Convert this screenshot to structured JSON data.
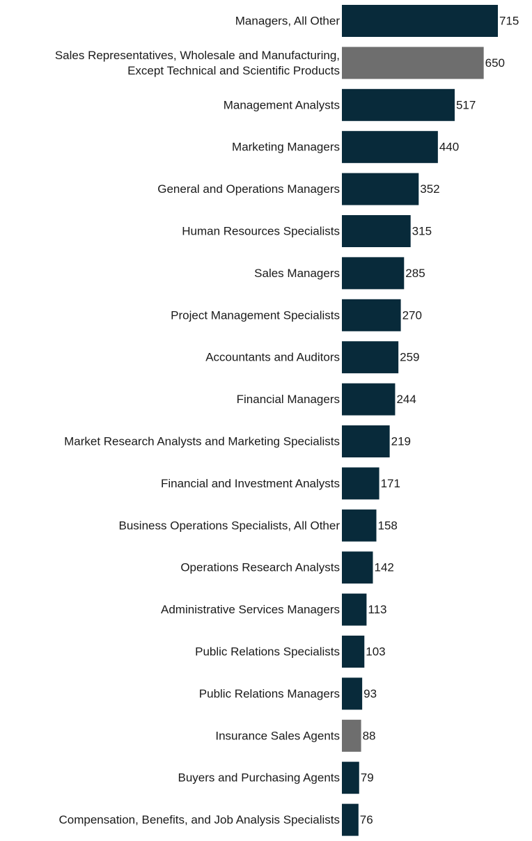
{
  "chart_data": {
    "type": "bar",
    "orientation": "horizontal",
    "title": "",
    "xlabel": "",
    "ylabel": "",
    "grid": false,
    "legend": "none",
    "xlim": [
      0,
      715
    ],
    "colors": {
      "default": "#082a3a",
      "highlight": "#6e6e6e"
    },
    "categories": [
      [
        "Managers, All Other"
      ],
      [
        "Sales Representatives, Wholesale and Manufacturing,",
        "Except Technical and Scientific Products"
      ],
      [
        "Management Analysts"
      ],
      [
        "Marketing Managers"
      ],
      [
        "General and Operations Managers"
      ],
      [
        "Human Resources Specialists"
      ],
      [
        "Sales Managers"
      ],
      [
        "Project Management Specialists"
      ],
      [
        "Accountants and Auditors"
      ],
      [
        "Financial Managers"
      ],
      [
        "Market Research Analysts and Marketing Specialists"
      ],
      [
        "Financial and Investment Analysts"
      ],
      [
        "Business Operations Specialists, All Other"
      ],
      [
        "Operations Research Analysts"
      ],
      [
        "Administrative Services Managers"
      ],
      [
        "Public Relations Specialists"
      ],
      [
        "Public Relations Managers"
      ],
      [
        "Insurance Sales Agents"
      ],
      [
        "Buyers and Purchasing Agents"
      ],
      [
        "Compensation, Benefits, and Job Analysis Specialists"
      ]
    ],
    "values": [
      715,
      650,
      517,
      440,
      352,
      315,
      285,
      270,
      259,
      244,
      219,
      171,
      158,
      142,
      113,
      103,
      93,
      88,
      79,
      76
    ],
    "highlighted": [
      false,
      true,
      false,
      false,
      false,
      false,
      false,
      false,
      false,
      false,
      false,
      false,
      false,
      false,
      false,
      false,
      false,
      true,
      false,
      false
    ]
  }
}
